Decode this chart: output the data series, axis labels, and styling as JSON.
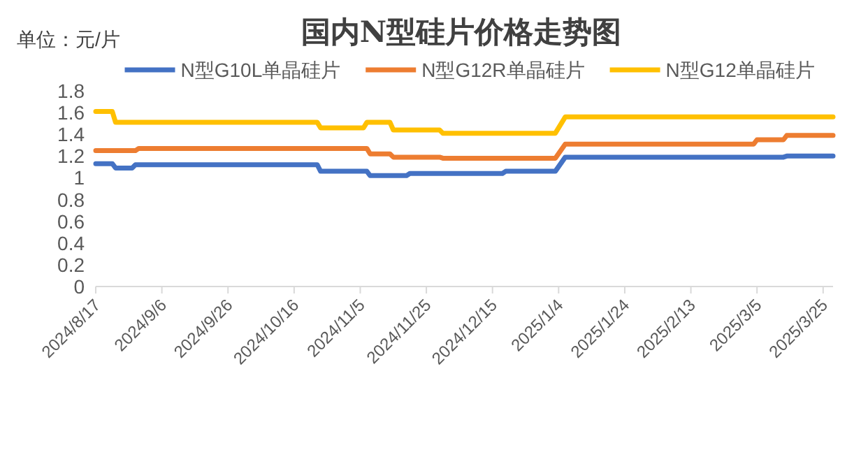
{
  "chart_data": {
    "type": "line",
    "title": "国内N型硅片价格走势图",
    "annotations": [
      "单位：元/片"
    ],
    "legend": "top",
    "marker": "none",
    "line_style": "solid",
    "grid": false,
    "xlim": [
      "2024-08-17",
      "2025-03-28"
    ],
    "xticks": [
      {
        "value": "2024-08-17",
        "label": "2024/8/17"
      },
      {
        "value": "2024-09-06",
        "label": "2024/9/6"
      },
      {
        "value": "2024-09-26",
        "label": "2024/9/26"
      },
      {
        "value": "2024-10-16",
        "label": "2024/10/16"
      },
      {
        "value": "2024-11-05",
        "label": "2024/11/5"
      },
      {
        "value": "2024-11-25",
        "label": "2024/11/25"
      },
      {
        "value": "2024-12-15",
        "label": "2024/12/15"
      },
      {
        "value": "2025-01-04",
        "label": "2025/1/4"
      },
      {
        "value": "2025-01-24",
        "label": "2025/1/24"
      },
      {
        "value": "2025-02-13",
        "label": "2025/2/13"
      },
      {
        "value": "2025-03-05",
        "label": "2025/3/5"
      },
      {
        "value": "2025-03-25",
        "label": "2025/3/25"
      }
    ],
    "ylim": [
      0,
      1.8
    ],
    "yticks": [
      0,
      0.2,
      0.4,
      0.6,
      0.8,
      1,
      1.2,
      1.4,
      1.6,
      1.8
    ],
    "series": [
      {
        "name": "N型G10L单晶硅片",
        "color": "#4472c4",
        "x": [
          "2024-08-17",
          "2024-08-22",
          "2024-08-23",
          "2024-08-28",
          "2024-08-29",
          "2024-10-23",
          "2024-10-24",
          "2024-11-07",
          "2024-11-08",
          "2024-11-19",
          "2024-11-20",
          "2024-12-18",
          "2024-12-19",
          "2025-01-03",
          "2025-01-06",
          "2025-03-13",
          "2025-03-14",
          "2025-03-28"
        ],
        "values": [
          1.13,
          1.13,
          1.09,
          1.09,
          1.12,
          1.12,
          1.06,
          1.06,
          1.02,
          1.02,
          1.04,
          1.04,
          1.06,
          1.06,
          1.19,
          1.19,
          1.2,
          1.2
        ]
      },
      {
        "name": "N型G12R单晶硅片",
        "color": "#ed7d31",
        "x": [
          "2024-08-17",
          "2024-08-29",
          "2024-08-30",
          "2024-11-07",
          "2024-11-08",
          "2024-11-14",
          "2024-11-15",
          "2024-11-29",
          "2024-11-30",
          "2025-01-03",
          "2025-01-06",
          "2025-03-04",
          "2025-03-05",
          "2025-03-13",
          "2025-03-14",
          "2025-03-28"
        ],
        "values": [
          1.25,
          1.25,
          1.27,
          1.27,
          1.22,
          1.22,
          1.19,
          1.19,
          1.18,
          1.18,
          1.31,
          1.31,
          1.35,
          1.35,
          1.39,
          1.39
        ]
      },
      {
        "name": "N型G12单晶硅片",
        "color": "#ffc000",
        "x": [
          "2024-08-17",
          "2024-08-22",
          "2024-08-23",
          "2024-10-23",
          "2024-10-24",
          "2024-11-06",
          "2024-11-07",
          "2024-11-14",
          "2024-11-15",
          "2024-11-29",
          "2024-11-30",
          "2025-01-03",
          "2025-01-06",
          "2025-03-28"
        ],
        "values": [
          1.61,
          1.61,
          1.51,
          1.51,
          1.46,
          1.46,
          1.51,
          1.51,
          1.44,
          1.44,
          1.41,
          1.41,
          1.56,
          1.56
        ]
      }
    ]
  }
}
